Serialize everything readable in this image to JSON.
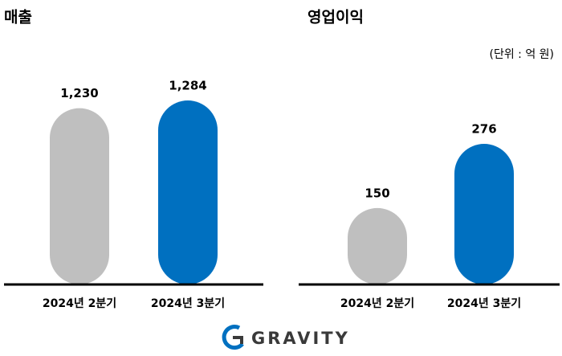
{
  "chart_data": [
    {
      "type": "bar",
      "title": "매출",
      "categories": [
        "2024년 2분기",
        "2024년 3분기"
      ],
      "values": [
        1230,
        1284
      ],
      "value_labels": [
        "1,230",
        "1,284"
      ],
      "colors": [
        "#bfbfbf",
        "#0070c0"
      ]
    },
    {
      "type": "bar",
      "title": "영업이익",
      "categories": [
        "2024년 2분기",
        "2024년 3분기"
      ],
      "values": [
        150,
        276
      ],
      "value_labels": [
        "150",
        "276"
      ],
      "colors": [
        "#bfbfbf",
        "#0070c0"
      ]
    }
  ],
  "unit_note": "(단위 : 억 원)",
  "logo": "GRAVITY"
}
